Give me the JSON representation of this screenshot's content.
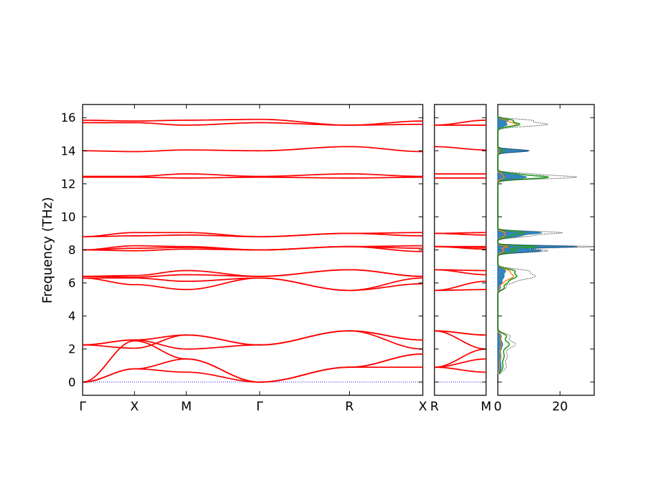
{
  "chart_data": {
    "type": "line",
    "ylabel": "Frequency (THz)",
    "ylim": [
      -0.8,
      16.8
    ],
    "yticks": [
      0,
      2,
      4,
      6,
      8,
      10,
      12,
      14,
      16
    ],
    "colors": {
      "bands": "#ff0000",
      "zero_line": "#0000ff",
      "pdos": [
        "#1f77b4",
        "#ff7f0e",
        "#2ca02c"
      ],
      "total_dos": "#000000"
    },
    "band_panel": {
      "path_labels": [
        "Γ",
        "X",
        "M",
        "Γ",
        "R",
        "X"
      ],
      "path_positions": [
        0,
        0.5,
        1.0,
        1.707,
        2.573,
        3.28
      ],
      "bands": [
        {
          "name": "b1",
          "values": [
            0,
            0.8,
            0.6,
            0,
            0.9,
            0.9
          ]
        },
        {
          "name": "b2",
          "values": [
            0,
            0.8,
            1.4,
            0,
            0.9,
            1.7
          ]
        },
        {
          "name": "b3",
          "values": [
            0,
            2.5,
            1.4,
            0,
            0.9,
            1.7
          ]
        },
        {
          "name": "b4",
          "values": [
            2.25,
            2.55,
            2.0,
            2.25,
            3.1,
            2.0
          ]
        },
        {
          "name": "b5",
          "values": [
            2.25,
            2.55,
            2.85,
            2.25,
            3.1,
            2.55
          ]
        },
        {
          "name": "b6",
          "values": [
            2.25,
            2.05,
            2.85,
            2.25,
            3.1,
            2.55
          ]
        },
        {
          "name": "b7",
          "values": [
            6.3,
            5.9,
            5.6,
            6.3,
            5.55,
            5.95
          ]
        },
        {
          "name": "b8",
          "values": [
            6.3,
            6.3,
            6.1,
            6.3,
            5.55,
            6.3
          ]
        },
        {
          "name": "b9",
          "values": [
            6.4,
            6.35,
            6.5,
            6.4,
            6.8,
            6.4
          ]
        },
        {
          "name": "b10",
          "values": [
            6.4,
            6.45,
            6.75,
            6.4,
            6.8,
            6.4
          ]
        },
        {
          "name": "b11",
          "values": [
            8.0,
            7.95,
            8.05,
            8.0,
            8.2,
            7.9
          ]
        },
        {
          "name": "b12",
          "values": [
            8.0,
            8.1,
            8.15,
            8.0,
            8.2,
            8.1
          ]
        },
        {
          "name": "b13",
          "values": [
            8.0,
            8.25,
            8.2,
            8.0,
            8.2,
            8.25
          ]
        },
        {
          "name": "b14",
          "values": [
            8.8,
            8.85,
            8.9,
            8.8,
            9.0,
            8.85
          ]
        },
        {
          "name": "b15",
          "values": [
            8.8,
            9.05,
            9.05,
            8.8,
            9.0,
            9.05
          ]
        },
        {
          "name": "b16",
          "values": [
            12.4,
            12.4,
            12.35,
            12.4,
            12.35,
            12.4
          ]
        },
        {
          "name": "b17",
          "values": [
            12.45,
            12.45,
            12.6,
            12.45,
            12.6,
            12.45
          ]
        },
        {
          "name": "b18",
          "values": [
            14.0,
            13.95,
            14.05,
            14.0,
            14.25,
            13.95
          ]
        },
        {
          "name": "b19",
          "values": [
            15.7,
            15.7,
            15.55,
            15.7,
            15.55,
            15.6
          ]
        },
        {
          "name": "b20",
          "values": [
            15.85,
            15.8,
            15.85,
            15.9,
            15.55,
            15.8
          ]
        }
      ]
    },
    "rm_panel": {
      "path_labels": [
        "R",
        "M"
      ],
      "path_positions": [
        0,
        0.707
      ],
      "bands": [
        {
          "name": "b1",
          "values": [
            0.9,
            0.6
          ]
        },
        {
          "name": "b2",
          "values": [
            0.9,
            1.4
          ]
        },
        {
          "name": "b3",
          "values": [
            0.9,
            2.0
          ]
        },
        {
          "name": "b4",
          "values": [
            3.1,
            2.0
          ]
        },
        {
          "name": "b5",
          "values": [
            3.1,
            2.85
          ]
        },
        {
          "name": "b6",
          "values": [
            3.1,
            2.85
          ]
        },
        {
          "name": "b7",
          "values": [
            5.55,
            5.6
          ]
        },
        {
          "name": "b8",
          "values": [
            5.55,
            6.1
          ]
        },
        {
          "name": "b9",
          "values": [
            6.8,
            6.5
          ]
        },
        {
          "name": "b10",
          "values": [
            6.8,
            6.75
          ]
        },
        {
          "name": "b11",
          "values": [
            8.2,
            8.05
          ]
        },
        {
          "name": "b12",
          "values": [
            8.2,
            8.15
          ]
        },
        {
          "name": "b13",
          "values": [
            8.2,
            8.2
          ]
        },
        {
          "name": "b14",
          "values": [
            9.0,
            8.9
          ]
        },
        {
          "name": "b15",
          "values": [
            9.0,
            9.05
          ]
        },
        {
          "name": "b16",
          "values": [
            12.35,
            12.35
          ]
        },
        {
          "name": "b17",
          "values": [
            12.6,
            12.6
          ]
        },
        {
          "name": "b18",
          "values": [
            14.25,
            14.05
          ]
        },
        {
          "name": "b19",
          "values": [
            15.55,
            15.55
          ]
        },
        {
          "name": "b20",
          "values": [
            15.55,
            15.85
          ]
        }
      ]
    },
    "dos_panel": {
      "xlim": [
        0,
        31
      ],
      "xticks": [
        0,
        20
      ],
      "peaks": [
        {
          "center": 0.9,
          "width": 0.25,
          "total": 2.5,
          "blue": 1.0,
          "orange": 0.5,
          "green": 1.5
        },
        {
          "center": 1.6,
          "width": 0.3,
          "total": 3.0,
          "blue": 1.0,
          "orange": 0.8,
          "green": 2.0
        },
        {
          "center": 2.3,
          "width": 0.22,
          "total": 5.5,
          "blue": 1.5,
          "orange": 1.0,
          "green": 3.5
        },
        {
          "center": 2.8,
          "width": 0.15,
          "total": 3.5,
          "blue": 1.0,
          "orange": 0.8,
          "green": 2.5
        },
        {
          "center": 5.7,
          "width": 0.12,
          "total": 2.5,
          "blue": 0.8,
          "orange": 0.5,
          "green": 2.0
        },
        {
          "center": 6.0,
          "width": 0.12,
          "total": 3.0,
          "blue": 1.0,
          "orange": 1.0,
          "green": 2.2
        },
        {
          "center": 6.4,
          "width": 0.2,
          "total": 12.0,
          "blue": 2.0,
          "orange": 5.0,
          "green": 6.0
        },
        {
          "center": 6.75,
          "width": 0.12,
          "total": 7.0,
          "blue": 2.0,
          "orange": 2.5,
          "green": 4.0
        },
        {
          "center": 7.95,
          "width": 0.1,
          "total": 16.0,
          "blue": 14.0,
          "orange": 2.0,
          "green": 6.0
        },
        {
          "center": 8.2,
          "width": 0.06,
          "total": 30.5,
          "blue": 25.0,
          "orange": 3.0,
          "green": 12.0
        },
        {
          "center": 8.85,
          "width": 0.1,
          "total": 10.0,
          "blue": 7.0,
          "orange": 2.0,
          "green": 4.0
        },
        {
          "center": 9.05,
          "width": 0.08,
          "total": 19.0,
          "blue": 13.0,
          "orange": 2.0,
          "green": 8.0
        },
        {
          "center": 12.4,
          "width": 0.1,
          "total": 25.0,
          "blue": 9.0,
          "orange": 2.0,
          "green": 16.0
        },
        {
          "center": 12.6,
          "width": 0.08,
          "total": 8.0,
          "blue": 4.0,
          "orange": 1.0,
          "green": 4.0
        },
        {
          "center": 14.0,
          "width": 0.08,
          "total": 10.0,
          "blue": 10.0,
          "orange": 0.5,
          "green": 2.0
        },
        {
          "center": 15.6,
          "width": 0.12,
          "total": 16.0,
          "blue": 3.0,
          "orange": 6.0,
          "green": 7.0
        },
        {
          "center": 15.85,
          "width": 0.08,
          "total": 9.0,
          "blue": 3.0,
          "orange": 2.0,
          "green": 4.0
        }
      ]
    }
  }
}
